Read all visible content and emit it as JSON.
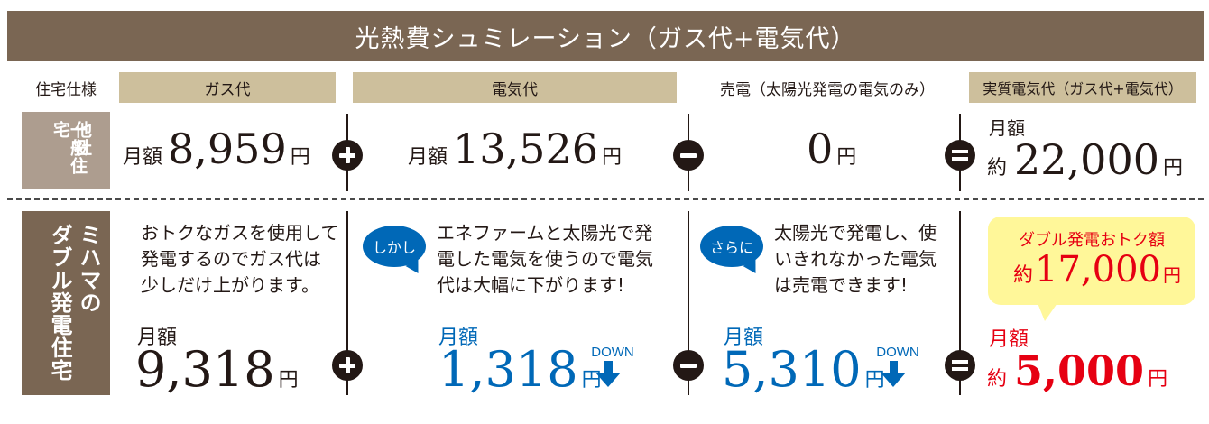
{
  "title": "光熱費シュミレーション（ガス代+電気代）",
  "headers": {
    "spec": "住宅仕様",
    "gas": "ガス代",
    "electric": "電気代",
    "sell": "売電（太陽光発電の電気のみ）",
    "real": "実質電気代（ガス代+電気代）"
  },
  "rows": {
    "other": {
      "label_col1": "他社",
      "label_col2": "一般住宅",
      "gas": {
        "prefix": "月額",
        "value": "8,959",
        "unit": "円"
      },
      "electric": {
        "prefix": "月額",
        "value": "13,526",
        "unit": "円"
      },
      "sell": {
        "value": "0",
        "unit": "円"
      },
      "real": {
        "label": "月額",
        "prefix": "約",
        "value": "22,000",
        "unit": "円"
      }
    },
    "mihama": {
      "label_col1": "ミハマの",
      "label_col2": "ダブル発電住宅",
      "gas": {
        "desc": [
          "おトクなガスを使用して",
          "発電するのでガス代は",
          "少しだけ上がります。"
        ],
        "label": "月額",
        "value": "9,318",
        "unit": "円"
      },
      "electric": {
        "bubble": "しかし",
        "desc": [
          "エネファームと太陽光で発",
          "電した電気を使うので電気",
          "代は大幅に下がります!"
        ],
        "label": "月額",
        "value": "1,318",
        "unit": "円",
        "down": "DOWN"
      },
      "sell": {
        "bubble": "さらに",
        "desc": [
          "太陽光で発電し、使",
          "いきれなかった電気",
          "は売電できます!"
        ],
        "label": "月額",
        "value": "5,310",
        "unit": "円",
        "down": "DOWN"
      },
      "real": {
        "callout_title": "ダブル発電おトク額",
        "callout_prefix": "約",
        "callout_value": "17,000",
        "callout_unit": "円",
        "label": "月額",
        "prefix": "約",
        "value": "5,000",
        "unit": "円"
      }
    }
  },
  "colors": {
    "brown": "#7a6653",
    "light_brown": "#ad9d8f",
    "tan": "#cdbf9c",
    "blue": "#0068b7",
    "red": "#e60012",
    "yellow": "#fff799"
  },
  "icons": [
    "plus-icon",
    "minus-icon",
    "equals-icon",
    "down-arrow-icon"
  ]
}
